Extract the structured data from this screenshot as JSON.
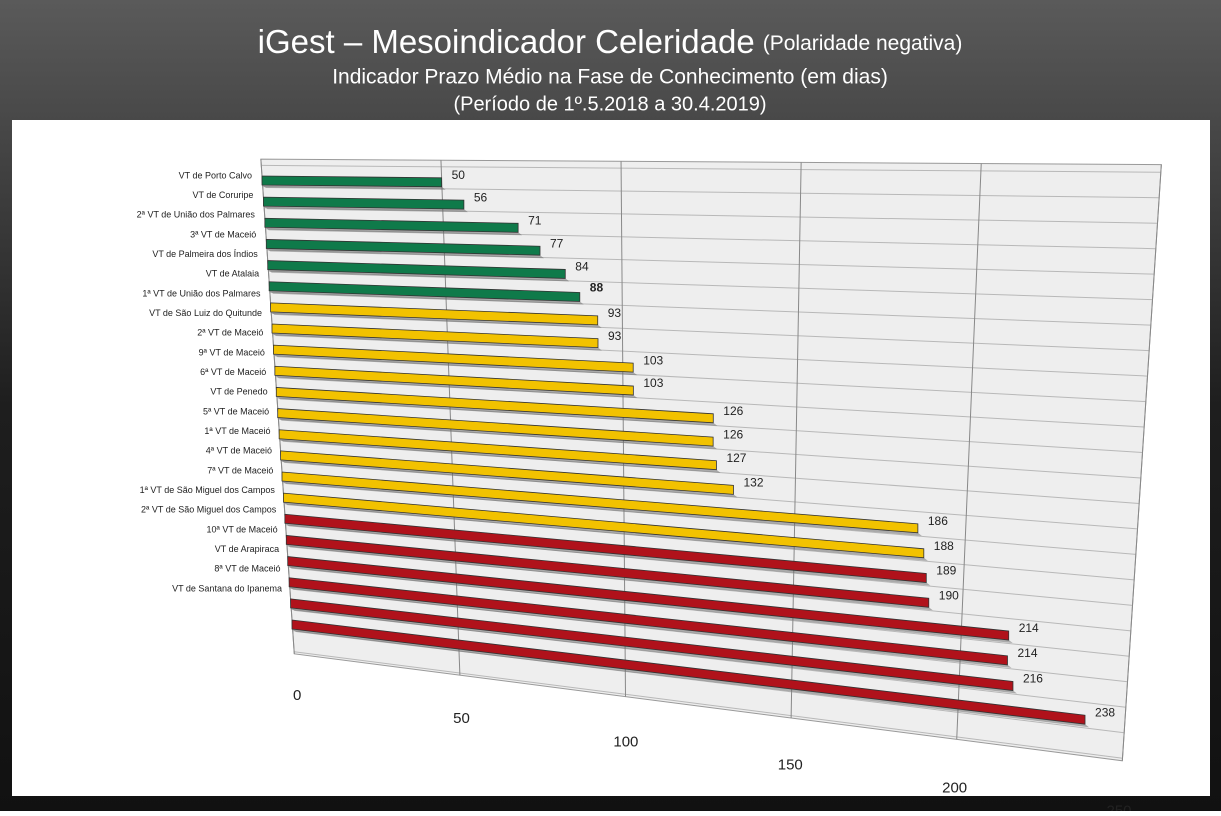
{
  "chart_data": {
    "type": "bar",
    "orientation": "horizontal",
    "title": "iGest – Mesoindicador Celeridade",
    "title_note": "(Polaridade negativa)",
    "subtitle": "Indicador Prazo Médio na Fase de Conhecimento (em dias)",
    "period": "(Período de 1º.5.2018  a  30.4.2019)",
    "categories": [
      "VT de Porto Calvo",
      "VT de Coruripe",
      "2ª VT de União dos Palmares",
      "3ª VT de Maceió",
      "VT de Palmeira dos Índios",
      "VT de Atalaia",
      "1ª VT de União dos Palmares",
      "VT de São Luiz do Quitunde",
      "2ª VT de Maceió",
      "9ª VT de Maceió",
      "6ª VT de Maceió",
      "VT de Penedo",
      "5ª VT de Maceió",
      "1ª VT de Maceió",
      "4ª VT de Maceió",
      "7ª VT de Maceió",
      "1ª VT de São Miguel dos Campos",
      "2ª VT de São Miguel dos Campos",
      "10ª VT de Maceió",
      "VT de Arapiraca",
      "8ª VT de Maceió",
      "VT de Santana do Ipanema"
    ],
    "values": [
      50,
      56,
      71,
      77,
      84,
      88,
      93,
      93,
      103,
      103,
      126,
      126,
      127,
      132,
      186,
      188,
      189,
      190,
      214,
      214,
      216,
      238
    ],
    "colors": [
      "#0f7a4a",
      "#0f7a4a",
      "#0f7a4a",
      "#0f7a4a",
      "#0f7a4a",
      "#0f7a4a",
      "#f2c200",
      "#f2c200",
      "#f2c200",
      "#f2c200",
      "#f2c200",
      "#f2c200",
      "#f2c200",
      "#f2c200",
      "#f2c200",
      "#f2c200",
      "#b0121b",
      "#b0121b",
      "#b0121b",
      "#b0121b",
      "#b0121b",
      "#b0121b"
    ],
    "highlight": 5,
    "xlim": [
      0,
      250
    ],
    "xticks": [
      0,
      50,
      100,
      150,
      200,
      250
    ],
    "grid": true
  }
}
